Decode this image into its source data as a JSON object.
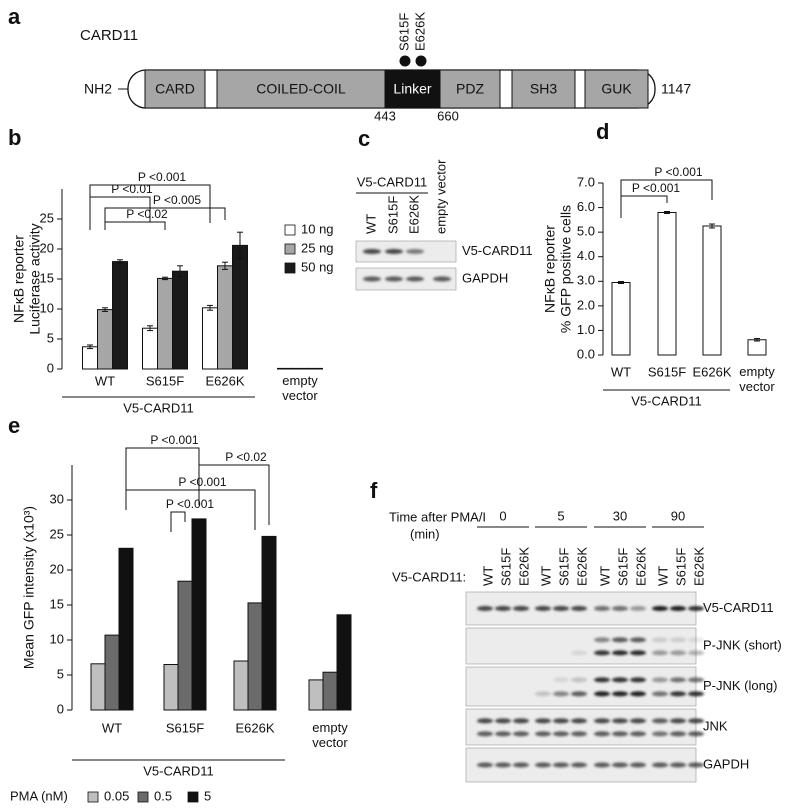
{
  "diagram": {
    "panel": "a",
    "protein": "CARD11",
    "n_term": "NH2",
    "c_term": "1147",
    "domains": [
      "CARD",
      "COILED-COIL",
      "Linker",
      "PDZ",
      "SH3",
      "GUK"
    ],
    "positions": [
      "443",
      "660"
    ],
    "mutations": [
      "S615F",
      "E626K"
    ]
  },
  "chart_data": [
    {
      "panel": "b",
      "type": "bar",
      "ylabel": [
        "NFκB reporter",
        "Luciferase activity"
      ],
      "categories": [
        "WT",
        "S615F",
        "E626K",
        "empty vector"
      ],
      "group_label": "V5-CARD11",
      "ylim": [
        0,
        30
      ],
      "yticks": [
        0,
        5,
        10,
        15,
        20,
        25
      ],
      "series": [
        {
          "name": "10 ng",
          "color": "#ffffff",
          "values": [
            3.7,
            6.8,
            10.2,
            0.1
          ],
          "errors": [
            0.3,
            0.4,
            0.4,
            0
          ]
        },
        {
          "name": "25 ng",
          "color": "#a6a6a6",
          "values": [
            9.9,
            15.1,
            17.2,
            0.1
          ],
          "errors": [
            0.3,
            0.2,
            0.6,
            0
          ]
        },
        {
          "name": "50 ng",
          "color": "#1a1a1a",
          "values": [
            17.9,
            16.3,
            20.6,
            0.1
          ],
          "errors": [
            0.3,
            0.9,
            2.2,
            0
          ]
        }
      ],
      "annotations": [
        "P <0.001",
        "P <0.01",
        "P <0.005",
        "P <0.02"
      ]
    },
    {
      "panel": "d",
      "type": "bar",
      "ylabel": [
        "NFκB reporter",
        "% GFP positive cells"
      ],
      "categories": [
        "WT",
        "S615F",
        "E626K",
        "empty vector"
      ],
      "group_label": "V5-CARD11",
      "ylim": [
        0,
        7
      ],
      "yticks": [
        {
          "value": 0,
          "label": "0.0"
        },
        {
          "value": 1,
          "label": "1.0"
        },
        {
          "value": 2,
          "label": "2.0"
        },
        {
          "value": 3,
          "label": "3.0"
        },
        {
          "value": 4,
          "label": "4.0"
        },
        {
          "value": 5,
          "label": "5.0"
        },
        {
          "value": 6,
          "label": "6.0"
        },
        {
          "value": 7,
          "label": "7.0"
        }
      ],
      "color": "#ffffff",
      "values": [
        2.95,
        5.8,
        5.25,
        0.62
      ],
      "errors": [
        0.04,
        0.04,
        0.08,
        0.05
      ],
      "annotations": [
        "P <0.001",
        "P <0.001"
      ]
    },
    {
      "panel": "e",
      "type": "bar",
      "ylabel": [
        "Mean GFP intensity (x10³)"
      ],
      "categories": [
        "WT",
        "S615F",
        "E626K",
        "empty vector"
      ],
      "group_label": "V5-CARD11",
      "ylim": [
        0,
        35
      ],
      "yticks": [
        0,
        5,
        10,
        15,
        20,
        25,
        30
      ],
      "legend_title": "PMA (nM)",
      "series": [
        {
          "name": "0.05",
          "color": "#bfbfbf",
          "values": [
            6.6,
            6.5,
            7.0,
            4.3
          ]
        },
        {
          "name": "0.5",
          "color": "#6b6b6b",
          "values": [
            10.7,
            18.4,
            15.3,
            5.4
          ]
        },
        {
          "name": "5",
          "color": "#111111",
          "values": [
            23.1,
            27.3,
            24.8,
            13.6
          ]
        }
      ],
      "annotations": [
        "P <0.001",
        "P <0.02",
        "P <0.001",
        "P <0.001"
      ]
    }
  ],
  "blot_c": {
    "panel": "c",
    "group": "V5-CARD11",
    "lanes": [
      "WT",
      "S615F",
      "E626K",
      "empty vector"
    ],
    "rows": [
      "V5-CARD11",
      "GAPDH"
    ]
  },
  "blot_f": {
    "panel": "f",
    "time_label": "Time after PMA/I",
    "time_unit": "(min)",
    "times": [
      "0",
      "5",
      "30",
      "90"
    ],
    "lane_label": "V5-CARD11:",
    "lanes": [
      "WT",
      "S615F",
      "E626K"
    ],
    "rows": [
      "V5-CARD11",
      "P-JNK (short)",
      "P-JNK (long)",
      "JNK",
      "GAPDH"
    ]
  }
}
